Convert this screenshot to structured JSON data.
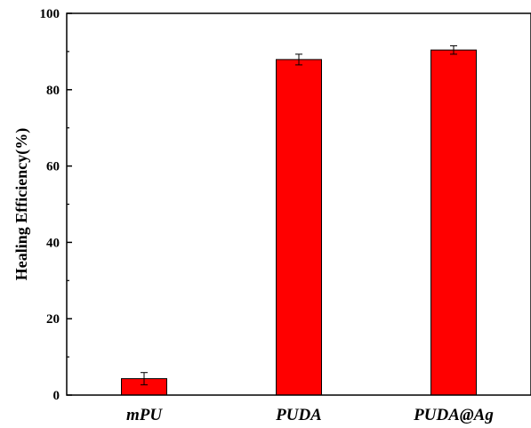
{
  "chart_data": {
    "type": "bar",
    "title": "",
    "xlabel": "",
    "ylabel": "Healing Efficiency(%)",
    "categories": [
      "mPU",
      "PUDA",
      "PUDA@Ag"
    ],
    "values": [
      4.3,
      87.9,
      90.4
    ],
    "errors": [
      1.6,
      1.4,
      1.1
    ],
    "ylim": [
      0,
      100
    ],
    "yticks": [
      0,
      20,
      40,
      60,
      80,
      100
    ],
    "grid": false,
    "legend": "none",
    "bar_color": "#ff0000"
  }
}
